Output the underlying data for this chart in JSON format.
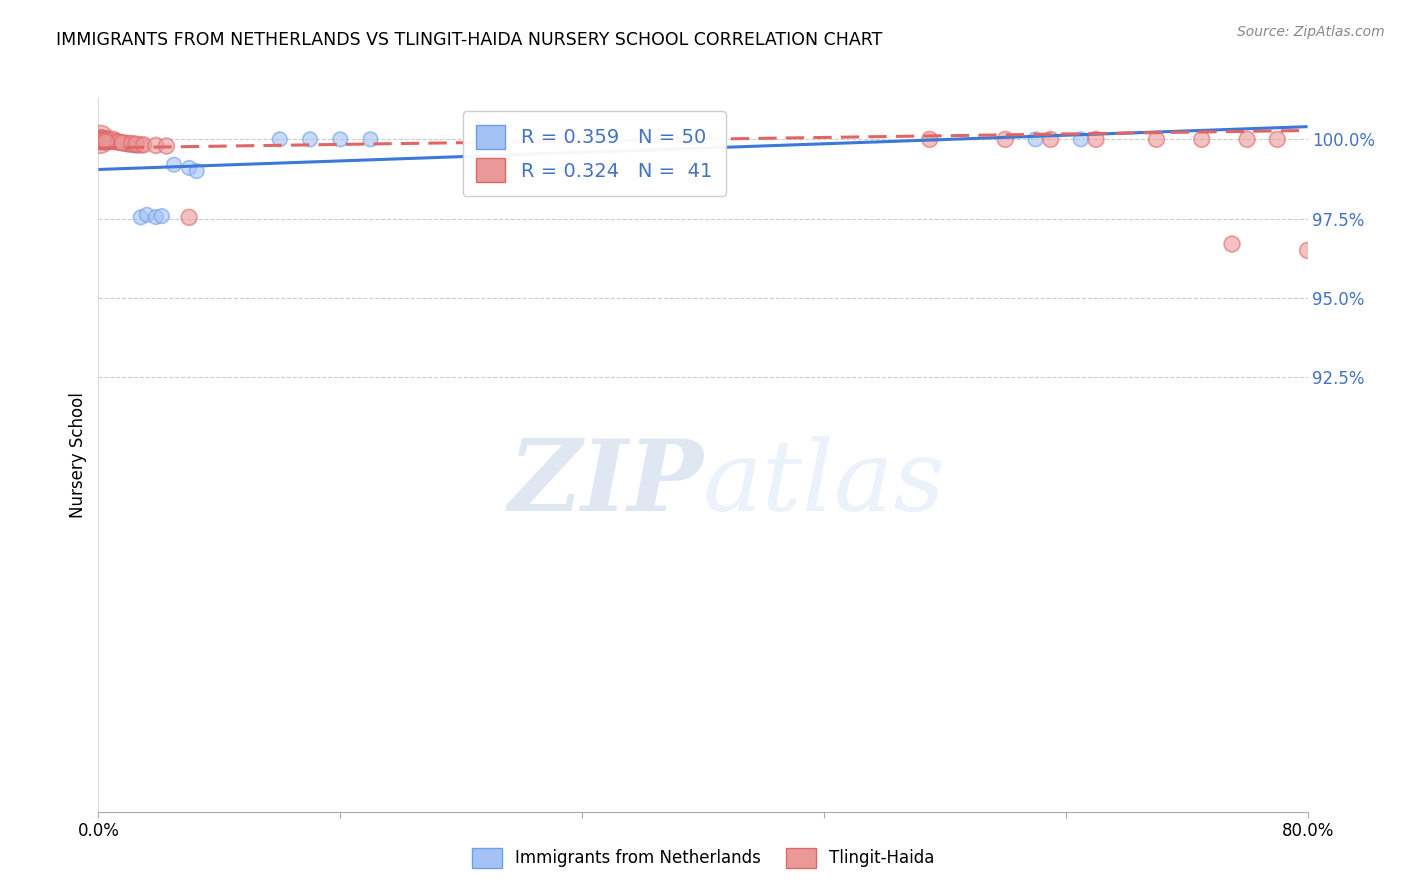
{
  "title": "IMMIGRANTS FROM NETHERLANDS VS TLINGIT-HAIDA NURSERY SCHOOL CORRELATION CHART",
  "source": "Source: ZipAtlas.com",
  "ylabel": "Nursery School",
  "xlim": [
    0.0,
    0.8
  ],
  "ylim": [
    0.788,
    1.013
  ],
  "ytick_values": [
    1.0,
    0.975,
    0.95,
    0.925
  ],
  "ytick_labels": [
    "100.0%",
    "97.5%",
    "95.0%",
    "92.5%"
  ],
  "xtick_values": [
    0.0,
    0.16,
    0.32,
    0.48,
    0.64,
    0.8
  ],
  "xtick_labels": [
    "0.0%",
    "",
    "",
    "",
    "",
    "80.0%"
  ],
  "legend_line1": "R = 0.359   N = 50",
  "legend_line2": "R = 0.324   N =  41",
  "blue_color": "#a4c2f4",
  "pink_color": "#ea9999",
  "blue_edge_color": "#6d9eeb",
  "pink_edge_color": "#e06666",
  "blue_line_color": "#3c78d8",
  "pink_line_color": "#e06666",
  "blue_line_x": [
    0.0,
    0.8
  ],
  "blue_line_y": [
    0.9905,
    1.004
  ],
  "pink_line_x": [
    0.0,
    0.8
  ],
  "pink_line_y": [
    0.9973,
    1.0028
  ],
  "legend_series_blue": "Immigrants from Netherlands",
  "legend_series_pink": "Tlingit-Haida",
  "watermark_text": "ZIPatlas",
  "blue_x": [
    0.001,
    0.001,
    0.002,
    0.002,
    0.003,
    0.003,
    0.003,
    0.004,
    0.004,
    0.004,
    0.005,
    0.005,
    0.005,
    0.006,
    0.006,
    0.006,
    0.007,
    0.007,
    0.007,
    0.008,
    0.008,
    0.009,
    0.009,
    0.01,
    0.011,
    0.012,
    0.013,
    0.014,
    0.015,
    0.017,
    0.018,
    0.02,
    0.022,
    0.025,
    0.028,
    0.032,
    0.038,
    0.042,
    0.05,
    0.06,
    0.065,
    0.12,
    0.14,
    0.16,
    0.18,
    0.62,
    0.65,
    0.003,
    0.004,
    0.005
  ],
  "blue_y": [
    1.0,
    0.9998,
    1.0,
    0.9998,
    1.0,
    0.9997,
    0.9995,
    1.0,
    0.9998,
    0.9995,
    1.0,
    0.9997,
    0.9994,
    1.0,
    0.9997,
    0.9994,
    1.0,
    0.9997,
    0.9994,
    0.9997,
    0.9993,
    0.9997,
    0.9993,
    0.9995,
    0.9993,
    0.9992,
    0.9991,
    0.9991,
    0.999,
    0.9988,
    0.9986,
    0.9984,
    0.9982,
    0.998,
    0.9754,
    0.9762,
    0.9755,
    0.9758,
    0.992,
    0.991,
    0.99,
    1.0,
    1.0,
    1.0,
    1.0,
    1.0,
    1.0,
    0.9992,
    0.999,
    0.9988
  ],
  "blue_sizes": [
    200,
    120,
    120,
    120,
    120,
    110,
    110,
    110,
    110,
    110,
    110,
    110,
    110,
    110,
    110,
    110,
    110,
    110,
    110,
    110,
    110,
    110,
    110,
    110,
    110,
    110,
    110,
    110,
    110,
    110,
    110,
    110,
    110,
    110,
    110,
    110,
    110,
    110,
    110,
    110,
    110,
    110,
    110,
    110,
    110,
    110,
    110,
    110,
    110,
    110
  ],
  "pink_x": [
    0.001,
    0.001,
    0.002,
    0.002,
    0.003,
    0.003,
    0.004,
    0.004,
    0.005,
    0.006,
    0.006,
    0.007,
    0.008,
    0.009,
    0.01,
    0.012,
    0.015,
    0.018,
    0.02,
    0.024,
    0.028,
    0.013,
    0.016,
    0.022,
    0.06,
    0.55,
    0.6,
    0.63,
    0.66,
    0.7,
    0.73,
    0.76,
    0.78,
    0.8,
    0.003,
    0.005,
    0.025,
    0.03,
    0.038,
    0.045,
    0.75
  ],
  "pink_y": [
    1.0,
    0.9997,
    1.0,
    0.9997,
    1.0,
    0.9997,
    1.0,
    0.9997,
    0.9995,
    1.0,
    0.9997,
    0.9995,
    0.9995,
    0.9993,
    1.0,
    0.9993,
    0.999,
    0.9988,
    0.9986,
    0.9984,
    0.9982,
    0.9991,
    0.9989,
    0.9987,
    0.9754,
    1.0,
    1.0,
    1.0,
    1.0,
    1.0,
    1.0,
    1.0,
    1.0,
    0.965,
    0.9995,
    0.9993,
    0.9985,
    0.9983,
    0.9981,
    0.9979,
    0.967
  ],
  "pink_sizes": [
    400,
    180,
    180,
    160,
    160,
    150,
    150,
    140,
    140,
    150,
    140,
    130,
    130,
    130,
    130,
    130,
    130,
    130,
    130,
    130,
    130,
    130,
    130,
    130,
    130,
    130,
    130,
    130,
    130,
    130,
    130,
    130,
    130,
    130,
    130,
    130,
    130,
    130,
    130,
    130,
    130
  ]
}
